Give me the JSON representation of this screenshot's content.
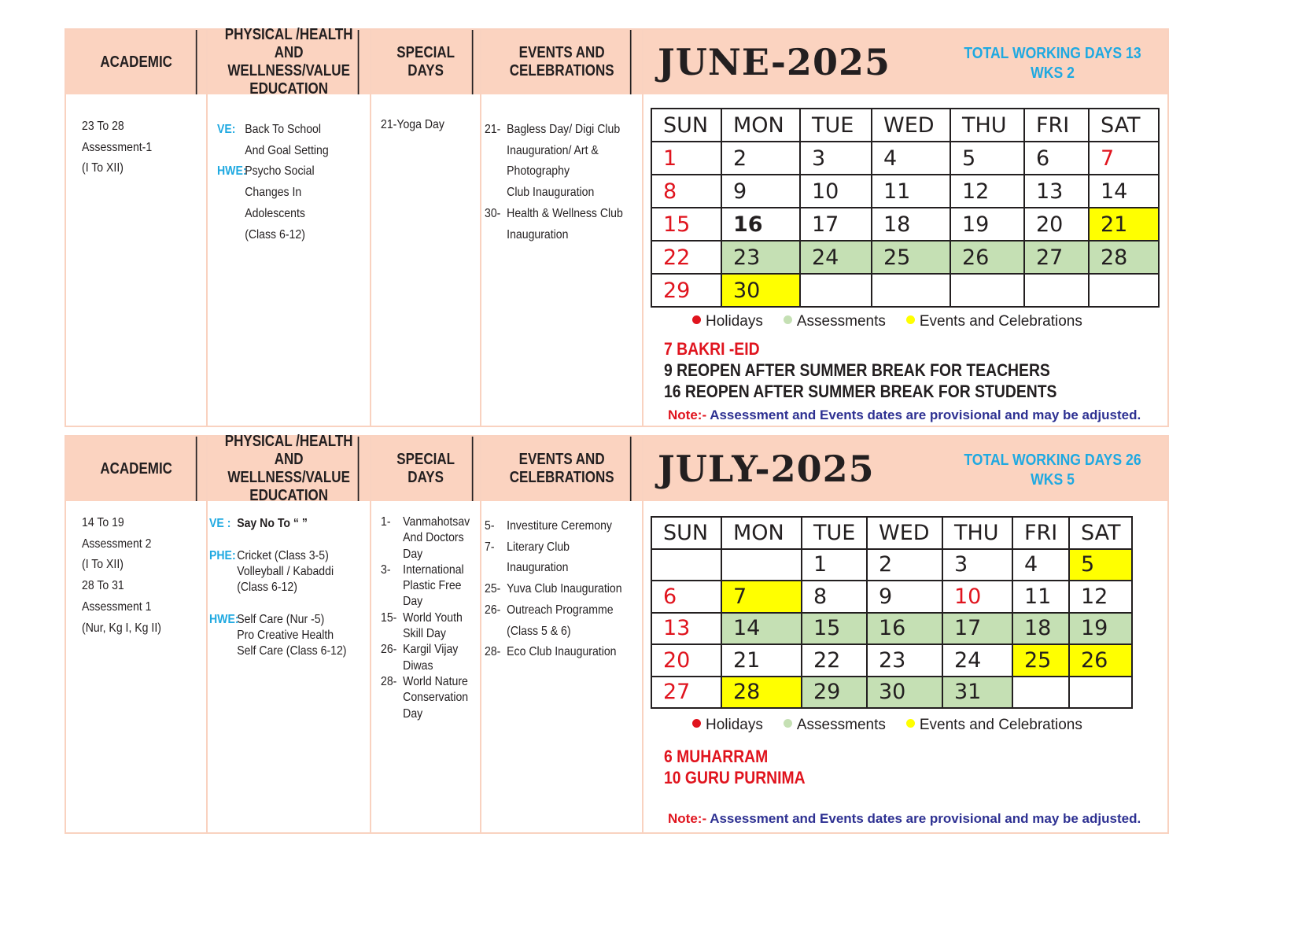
{
  "headers": {
    "academic": "ACADEMIC",
    "physical": "PHYSICAL /HEALTH AND WELLNESS/VALUE EDUCATION",
    "special": "SPECIAL DAYS",
    "events": "EVENTS AND CELEBRATIONS"
  },
  "weekdays": [
    "SUN",
    "MON",
    "TUE",
    "WED",
    "THU",
    "FRI",
    "SAT"
  ],
  "legend": {
    "holidays": "Holidays",
    "assessments": "Assessments",
    "events": "Events and Celebrations"
  },
  "colors": {
    "header_bg": "#fbd3c0",
    "holiday": "#e0141e",
    "assessment": "#c5e0b4",
    "event": "#ffff00",
    "label_blue": "#1fa9e1",
    "note_blue": "#2e3192"
  },
  "note": {
    "label": "Note:-",
    "text": " Assessment and Events dates are provisional and may be adjusted."
  },
  "june": {
    "title": "JUNE-2025",
    "working_days": "TOTAL WORKING DAYS 13",
    "weeks": "WKS 2",
    "academic": [
      "23 To 28",
      "Assessment-1",
      "(I To XII)"
    ],
    "physical": [
      {
        "label": "VE:",
        "lines": [
          "Back To School",
          "And Goal Setting"
        ]
      },
      {
        "label": "HWE:",
        "lines": [
          "Psycho Social",
          "Changes In",
          "Adolescents",
          "(Class 6-12)"
        ]
      }
    ],
    "special": [
      "21-Yoga Day"
    ],
    "events": [
      {
        "num": "21-",
        "lines": [
          "Bagless Day/ Digi Club",
          "Inauguration/ Art &",
          "Photography",
          "Club Inauguration"
        ]
      },
      {
        "num": "30-",
        "lines": [
          "Health & Wellness Club",
          "Inauguration"
        ]
      }
    ],
    "calendar": [
      [
        {
          "d": "1",
          "t": "h"
        },
        {
          "d": "2"
        },
        {
          "d": "3"
        },
        {
          "d": "4"
        },
        {
          "d": "5"
        },
        {
          "d": "6"
        },
        {
          "d": "7",
          "t": "h"
        }
      ],
      [
        {
          "d": "8",
          "t": "h"
        },
        {
          "d": "9"
        },
        {
          "d": "10"
        },
        {
          "d": "11"
        },
        {
          "d": "12"
        },
        {
          "d": "13"
        },
        {
          "d": "14"
        }
      ],
      [
        {
          "d": "15",
          "t": "h"
        },
        {
          "d": "16",
          "t": "b"
        },
        {
          "d": "17"
        },
        {
          "d": "18"
        },
        {
          "d": "19"
        },
        {
          "d": "20"
        },
        {
          "d": "21",
          "t": "e"
        }
      ],
      [
        {
          "d": "22",
          "t": "h"
        },
        {
          "d": "23",
          "t": "a"
        },
        {
          "d": "24",
          "t": "a"
        },
        {
          "d": "25",
          "t": "a"
        },
        {
          "d": "26",
          "t": "a"
        },
        {
          "d": "27",
          "t": "a"
        },
        {
          "d": "28",
          "t": "a"
        }
      ],
      [
        {
          "d": "29",
          "t": "h"
        },
        {
          "d": "30",
          "t": "e"
        },
        {
          "d": ""
        },
        {
          "d": ""
        },
        {
          "d": ""
        },
        {
          "d": ""
        },
        {
          "d": ""
        }
      ]
    ],
    "holiday_notes": [
      {
        "text": "7 BAKRI -EID",
        "color": "red"
      },
      {
        "text": "9 REOPEN AFTER SUMMER BREAK FOR TEACHERS",
        "color": "dark"
      },
      {
        "text": "16 REOPEN AFTER SUMMER BREAK FOR  STUDENTS",
        "color": "dark"
      }
    ]
  },
  "july": {
    "title": "JULY-2025",
    "working_days": "TOTAL WORKING DAYS 26",
    "weeks": "WKS 5",
    "academic": [
      "14 To 19",
      "Assessment 2",
      "(I To XII)",
      "",
      "28 To 31",
      "Assessment 1",
      "(Nur, Kg I, Kg II)"
    ],
    "physical": [
      {
        "label": "VE :",
        "lines": [
          "Say No To  “      ”"
        ],
        "bold": true
      },
      {
        "label": "PHE:",
        "lines": [
          "Cricket (Class 3-5)",
          "Volleyball / Kabaddi",
          "(Class 6-12)"
        ]
      },
      {
        "label": "HWE:",
        "lines": [
          "Self Care (Nur -5)",
          "Pro Creative Health",
          "Self Care (Class 6-12)"
        ]
      }
    ],
    "special": [
      {
        "num": "1-",
        "lines": [
          "Vanmahotsav",
          "And Doctors",
          "Day"
        ]
      },
      {
        "num": "3-",
        "lines": [
          "International",
          "Plastic Free",
          "Day"
        ]
      },
      {
        "num": "15-",
        "lines": [
          "World Youth",
          "Skill Day"
        ]
      },
      {
        "num": "26-",
        "lines": [
          "Kargil Vijay",
          "Diwas"
        ]
      },
      {
        "num": "28-",
        "lines": [
          "World Nature",
          "Conservation",
          "Day"
        ]
      }
    ],
    "events": [
      {
        "num": "5-",
        "lines": [
          "Investiture Ceremony"
        ]
      },
      {
        "num": "7-",
        "lines": [
          "Literary Club",
          "Inauguration"
        ]
      },
      {
        "num": "25-",
        "lines": [
          "Yuva Club Inauguration"
        ]
      },
      {
        "num": "26-",
        "lines": [
          "Outreach Programme",
          "(Class 5 & 6)"
        ]
      },
      {
        "num": "28-",
        "lines": [
          "Eco Club Inauguration"
        ]
      }
    ],
    "calendar": [
      [
        {
          "d": ""
        },
        {
          "d": ""
        },
        {
          "d": "1"
        },
        {
          "d": "2"
        },
        {
          "d": "3"
        },
        {
          "d": "4"
        },
        {
          "d": "5",
          "t": "e"
        }
      ],
      [
        {
          "d": "6",
          "t": "h"
        },
        {
          "d": "7",
          "t": "e"
        },
        {
          "d": "8"
        },
        {
          "d": "9"
        },
        {
          "d": "10",
          "t": "h"
        },
        {
          "d": "11"
        },
        {
          "d": "12"
        }
      ],
      [
        {
          "d": "13",
          "t": "h"
        },
        {
          "d": "14",
          "t": "a"
        },
        {
          "d": "15",
          "t": "a"
        },
        {
          "d": "16",
          "t": "a"
        },
        {
          "d": "17",
          "t": "a"
        },
        {
          "d": "18",
          "t": "a"
        },
        {
          "d": "19",
          "t": "a"
        }
      ],
      [
        {
          "d": "20",
          "t": "h"
        },
        {
          "d": "21"
        },
        {
          "d": "22"
        },
        {
          "d": "23"
        },
        {
          "d": "24"
        },
        {
          "d": "25",
          "t": "e"
        },
        {
          "d": "26",
          "t": "e"
        }
      ],
      [
        {
          "d": "27",
          "t": "h"
        },
        {
          "d": "28",
          "t": "e"
        },
        {
          "d": "29",
          "t": "a"
        },
        {
          "d": "30",
          "t": "a"
        },
        {
          "d": "31",
          "t": "a"
        },
        {
          "d": ""
        },
        {
          "d": ""
        }
      ]
    ],
    "holiday_notes": [
      {
        "text": "6 MUHARRAM",
        "color": "red"
      },
      {
        "text": "10 GURU PURNIMA",
        "color": "red"
      }
    ]
  }
}
